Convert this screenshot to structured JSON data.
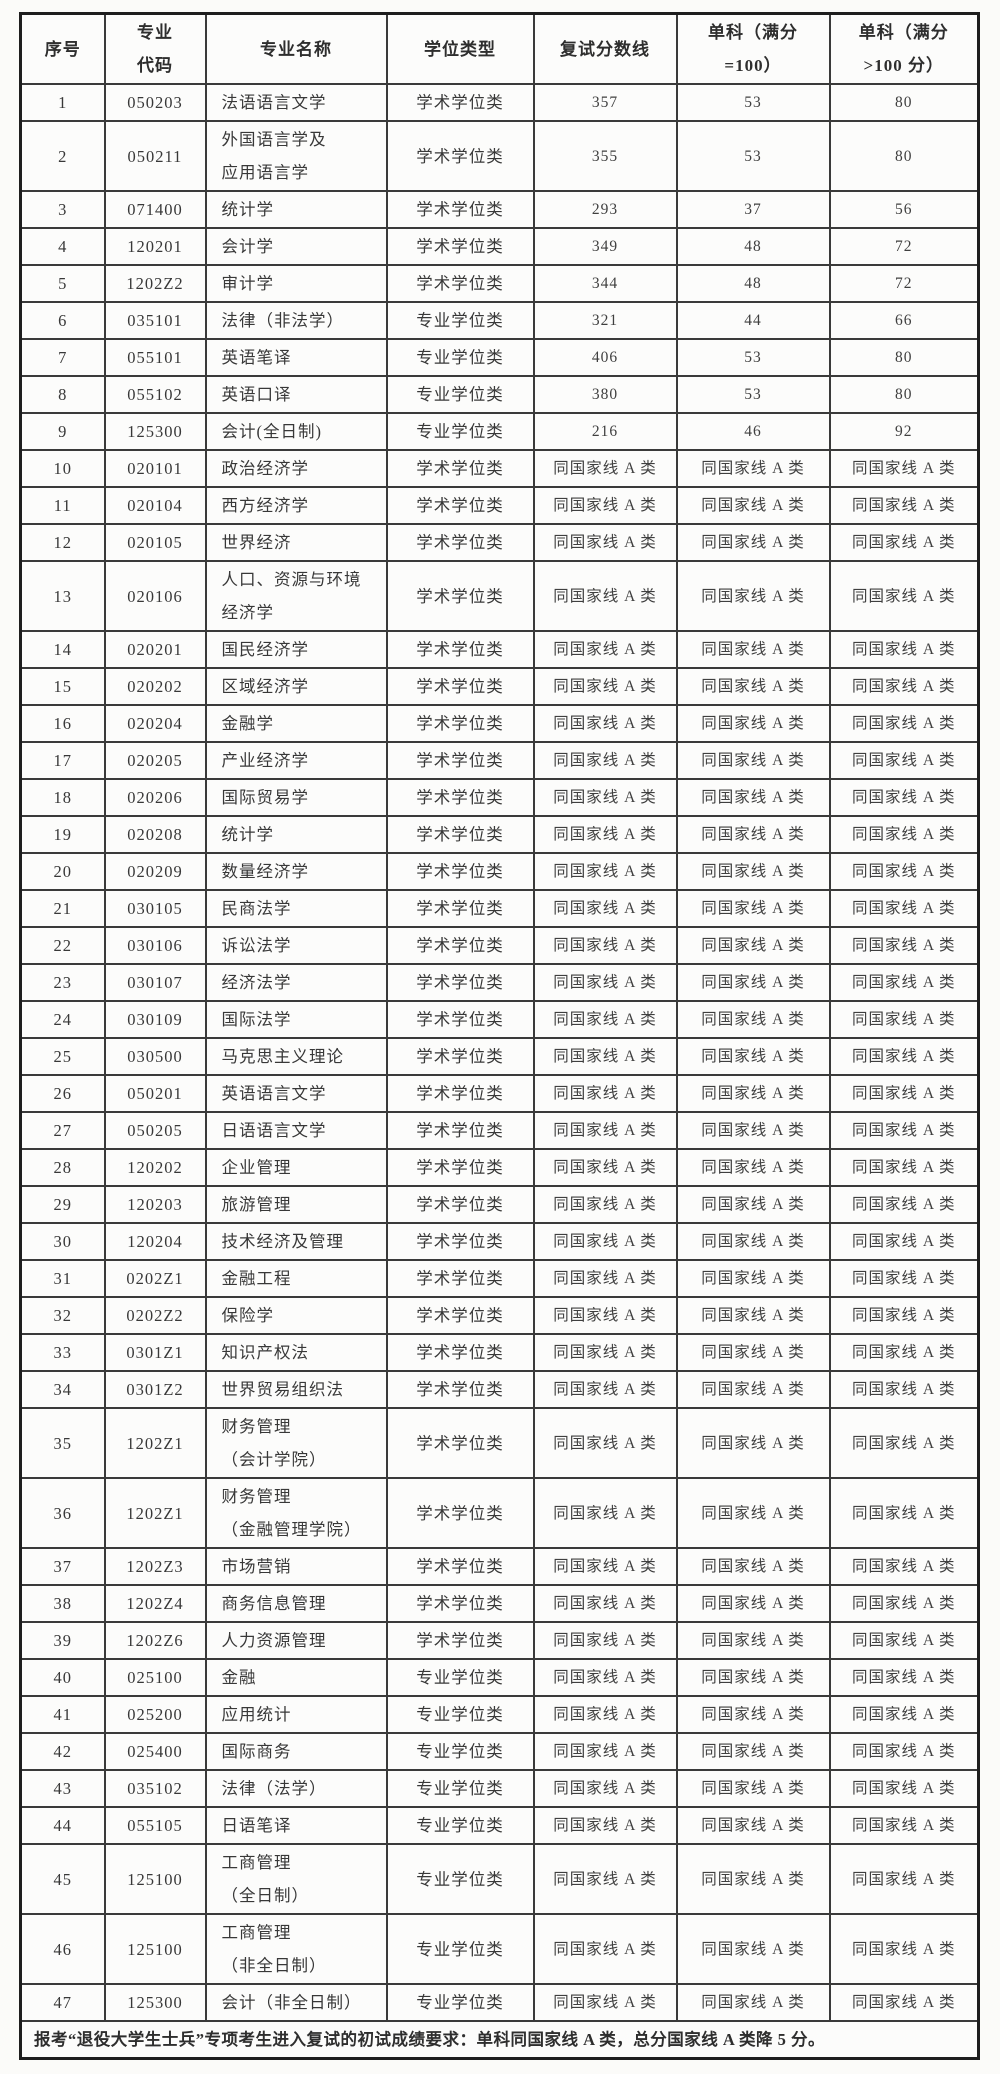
{
  "table": {
    "columns": [
      "序号",
      "专业\n代码",
      "专业名称",
      "学位类型",
      "复试分数线",
      "单科（满分\n=100）",
      "单科（满分\n>100 分）"
    ],
    "rows": [
      [
        "1",
        "050203",
        "法语语言文学",
        "学术学位类",
        "357",
        "53",
        "80"
      ],
      [
        "2",
        "050211",
        "外国语言学及\n应用语言学",
        "学术学位类",
        "355",
        "53",
        "80"
      ],
      [
        "3",
        "071400",
        "统计学",
        "学术学位类",
        "293",
        "37",
        "56"
      ],
      [
        "4",
        "120201",
        "会计学",
        "学术学位类",
        "349",
        "48",
        "72"
      ],
      [
        "5",
        "1202Z2",
        "审计学",
        "学术学位类",
        "344",
        "48",
        "72"
      ],
      [
        "6",
        "035101",
        "法律（非法学）",
        "专业学位类",
        "321",
        "44",
        "66"
      ],
      [
        "7",
        "055101",
        "英语笔译",
        "专业学位类",
        "406",
        "53",
        "80"
      ],
      [
        "8",
        "055102",
        "英语口译",
        "专业学位类",
        "380",
        "53",
        "80"
      ],
      [
        "9",
        "125300",
        "会计(全日制)",
        "专业学位类",
        "216",
        "46",
        "92"
      ],
      [
        "10",
        "020101",
        "政治经济学",
        "学术学位类",
        "同国家线 A 类",
        "同国家线 A 类",
        "同国家线 A 类"
      ],
      [
        "11",
        "020104",
        "西方经济学",
        "学术学位类",
        "同国家线 A 类",
        "同国家线 A 类",
        "同国家线 A 类"
      ],
      [
        "12",
        "020105",
        "世界经济",
        "学术学位类",
        "同国家线 A 类",
        "同国家线 A 类",
        "同国家线 A 类"
      ],
      [
        "13",
        "020106",
        "人口、资源与环境\n经济学",
        "学术学位类",
        "同国家线 A 类",
        "同国家线 A 类",
        "同国家线 A 类"
      ],
      [
        "14",
        "020201",
        "国民经济学",
        "学术学位类",
        "同国家线 A 类",
        "同国家线 A 类",
        "同国家线 A 类"
      ],
      [
        "15",
        "020202",
        "区域经济学",
        "学术学位类",
        "同国家线 A 类",
        "同国家线 A 类",
        "同国家线 A 类"
      ],
      [
        "16",
        "020204",
        "金融学",
        "学术学位类",
        "同国家线 A 类",
        "同国家线 A 类",
        "同国家线 A 类"
      ],
      [
        "17",
        "020205",
        "产业经济学",
        "学术学位类",
        "同国家线 A 类",
        "同国家线 A 类",
        "同国家线 A 类"
      ],
      [
        "18",
        "020206",
        "国际贸易学",
        "学术学位类",
        "同国家线 A 类",
        "同国家线 A 类",
        "同国家线 A 类"
      ],
      [
        "19",
        "020208",
        "统计学",
        "学术学位类",
        "同国家线 A 类",
        "同国家线 A 类",
        "同国家线 A 类"
      ],
      [
        "20",
        "020209",
        "数量经济学",
        "学术学位类",
        "同国家线 A 类",
        "同国家线 A 类",
        "同国家线 A 类"
      ],
      [
        "21",
        "030105",
        "民商法学",
        "学术学位类",
        "同国家线 A 类",
        "同国家线 A 类",
        "同国家线 A 类"
      ],
      [
        "22",
        "030106",
        "诉讼法学",
        "学术学位类",
        "同国家线 A 类",
        "同国家线 A 类",
        "同国家线 A 类"
      ],
      [
        "23",
        "030107",
        "经济法学",
        "学术学位类",
        "同国家线 A 类",
        "同国家线 A 类",
        "同国家线 A 类"
      ],
      [
        "24",
        "030109",
        "国际法学",
        "学术学位类",
        "同国家线 A 类",
        "同国家线 A 类",
        "同国家线 A 类"
      ],
      [
        "25",
        "030500",
        "马克思主义理论",
        "学术学位类",
        "同国家线 A 类",
        "同国家线 A 类",
        "同国家线 A 类"
      ],
      [
        "26",
        "050201",
        "英语语言文学",
        "学术学位类",
        "同国家线 A 类",
        "同国家线 A 类",
        "同国家线 A 类"
      ],
      [
        "27",
        "050205",
        "日语语言文学",
        "学术学位类",
        "同国家线 A 类",
        "同国家线 A 类",
        "同国家线 A 类"
      ],
      [
        "28",
        "120202",
        "企业管理",
        "学术学位类",
        "同国家线 A 类",
        "同国家线 A 类",
        "同国家线 A 类"
      ],
      [
        "29",
        "120203",
        "旅游管理",
        "学术学位类",
        "同国家线 A 类",
        "同国家线 A 类",
        "同国家线 A 类"
      ],
      [
        "30",
        "120204",
        "技术经济及管理",
        "学术学位类",
        "同国家线 A 类",
        "同国家线 A 类",
        "同国家线 A 类"
      ],
      [
        "31",
        "0202Z1",
        "金融工程",
        "学术学位类",
        "同国家线 A 类",
        "同国家线 A 类",
        "同国家线 A 类"
      ],
      [
        "32",
        "0202Z2",
        "保险学",
        "学术学位类",
        "同国家线 A 类",
        "同国家线 A 类",
        "同国家线 A 类"
      ],
      [
        "33",
        "0301Z1",
        "知识产权法",
        "学术学位类",
        "同国家线 A 类",
        "同国家线 A 类",
        "同国家线 A 类"
      ],
      [
        "34",
        "0301Z2",
        "世界贸易组织法",
        "学术学位类",
        "同国家线 A 类",
        "同国家线 A 类",
        "同国家线 A 类"
      ],
      [
        "35",
        "1202Z1",
        "财务管理\n（会计学院）",
        "学术学位类",
        "同国家线 A 类",
        "同国家线 A 类",
        "同国家线 A 类"
      ],
      [
        "36",
        "1202Z1",
        "财务管理\n（金融管理学院）",
        "学术学位类",
        "同国家线 A 类",
        "同国家线 A 类",
        "同国家线 A 类"
      ],
      [
        "37",
        "1202Z3",
        "市场营销",
        "学术学位类",
        "同国家线 A 类",
        "同国家线 A 类",
        "同国家线 A 类"
      ],
      [
        "38",
        "1202Z4",
        "商务信息管理",
        "学术学位类",
        "同国家线 A 类",
        "同国家线 A 类",
        "同国家线 A 类"
      ],
      [
        "39",
        "1202Z6",
        "人力资源管理",
        "学术学位类",
        "同国家线 A 类",
        "同国家线 A 类",
        "同国家线 A 类"
      ],
      [
        "40",
        "025100",
        "金融",
        "专业学位类",
        "同国家线 A 类",
        "同国家线 A 类",
        "同国家线 A 类"
      ],
      [
        "41",
        "025200",
        "应用统计",
        "专业学位类",
        "同国家线 A 类",
        "同国家线 A 类",
        "同国家线 A 类"
      ],
      [
        "42",
        "025400",
        "国际商务",
        "专业学位类",
        "同国家线 A 类",
        "同国家线 A 类",
        "同国家线 A 类"
      ],
      [
        "43",
        "035102",
        "法律（法学）",
        "专业学位类",
        "同国家线 A 类",
        "同国家线 A 类",
        "同国家线 A 类"
      ],
      [
        "44",
        "055105",
        "日语笔译",
        "专业学位类",
        "同国家线 A 类",
        "同国家线 A 类",
        "同国家线 A 类"
      ],
      [
        "45",
        "125100",
        "工商管理\n（全日制）",
        "专业学位类",
        "同国家线 A 类",
        "同国家线 A 类",
        "同国家线 A 类"
      ],
      [
        "46",
        "125100",
        "工商管理\n（非全日制）",
        "专业学位类",
        "同国家线 A 类",
        "同国家线 A 类",
        "同国家线 A 类"
      ],
      [
        "47",
        "125300",
        "会计（非全日制）",
        "专业学位类",
        "同国家线 A 类",
        "同国家线 A 类",
        "同国家线 A 类"
      ]
    ],
    "footer_note": "报考“退役大学生士兵”专项考生进入复试的初试成绩要求：单科同国家线 A 类，总分国家线 A 类降 5 分。"
  }
}
